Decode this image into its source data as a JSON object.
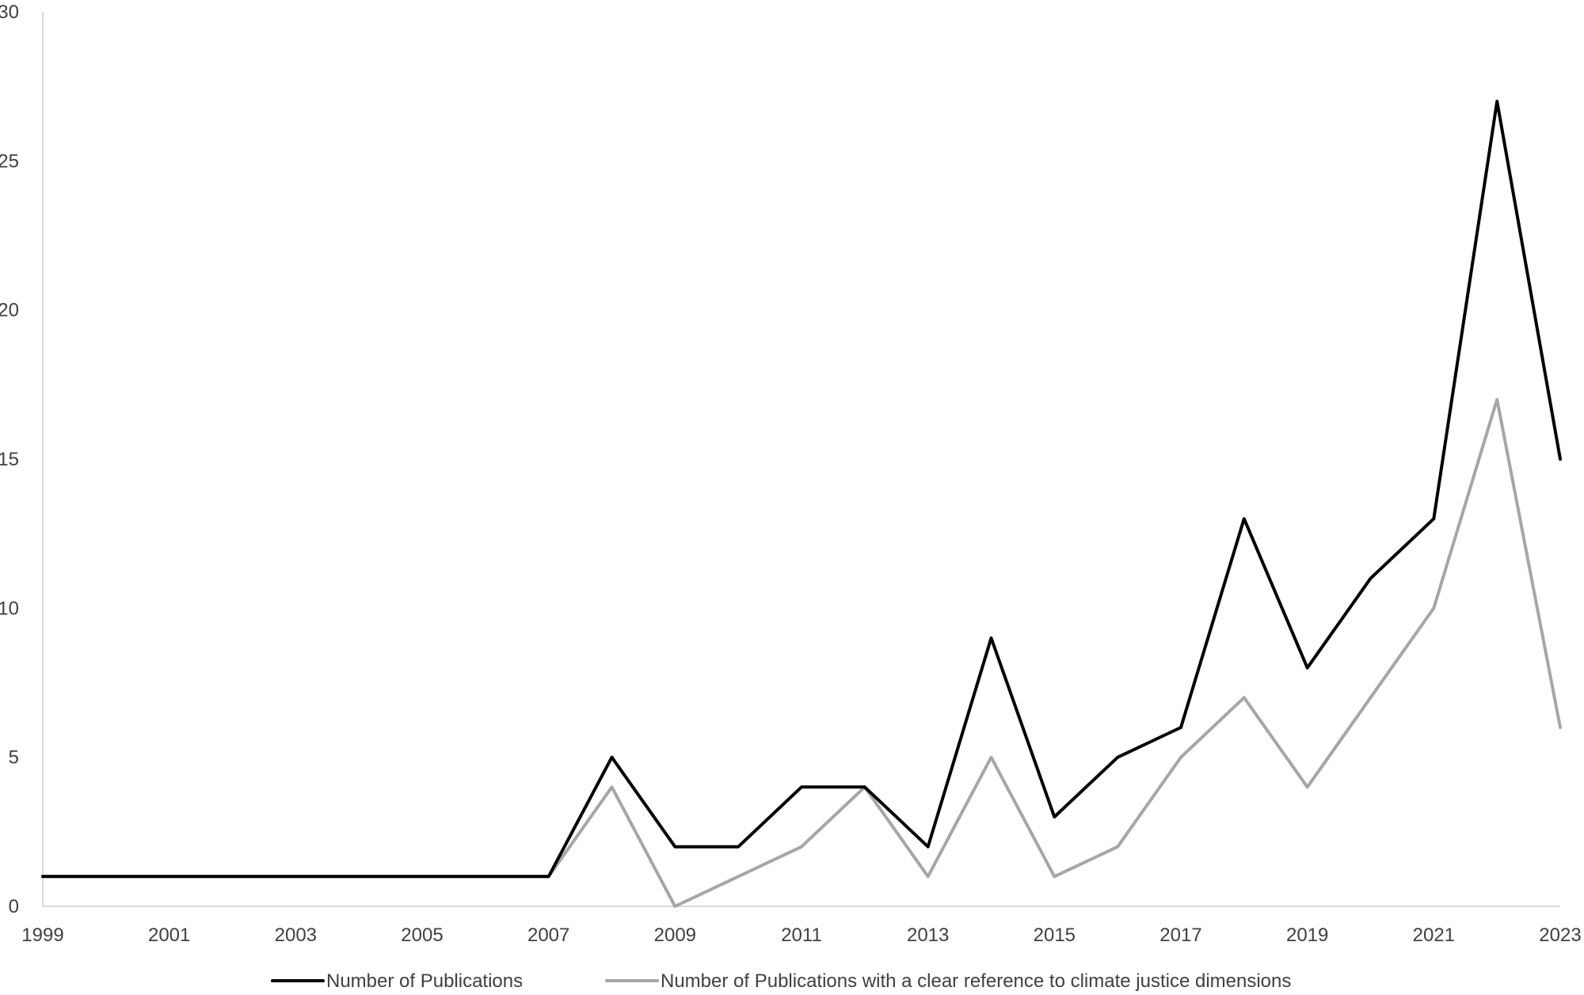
{
  "chart_data": {
    "type": "line",
    "title": "",
    "xlabel": "",
    "ylabel": "",
    "x": [
      1999,
      2000,
      2001,
      2002,
      2003,
      2004,
      2005,
      2006,
      2007,
      2008,
      2009,
      2010,
      2011,
      2012,
      2013,
      2014,
      2015,
      2016,
      2017,
      2018,
      2019,
      2020,
      2021,
      2022,
      2023
    ],
    "xticks": [
      "1999",
      "2001",
      "2003",
      "2005",
      "2007",
      "2009",
      "2011",
      "2013",
      "2015",
      "2017",
      "2019",
      "2021",
      "2023"
    ],
    "ylim": [
      0,
      30
    ],
    "yticks": [
      "0",
      "5",
      "10",
      "15",
      "20",
      "25",
      "30"
    ],
    "grid": false,
    "legend_position": "bottom",
    "series": [
      {
        "name": "Number of Publications",
        "color": "#000000",
        "values": [
          1,
          1,
          1,
          1,
          1,
          1,
          1,
          1,
          1,
          5,
          2,
          2,
          4,
          4,
          2,
          9,
          3,
          5,
          6,
          13,
          8,
          11,
          13,
          27,
          15
        ]
      },
      {
        "name": "Number of Publications with a clear reference to climate justice dimensions",
        "color": "#a6a6a6",
        "values": [
          1,
          1,
          1,
          1,
          1,
          1,
          1,
          1,
          1,
          4,
          0,
          1,
          2,
          4,
          1,
          5,
          1,
          2,
          5,
          7,
          4,
          7,
          10,
          17,
          6
        ]
      }
    ]
  }
}
